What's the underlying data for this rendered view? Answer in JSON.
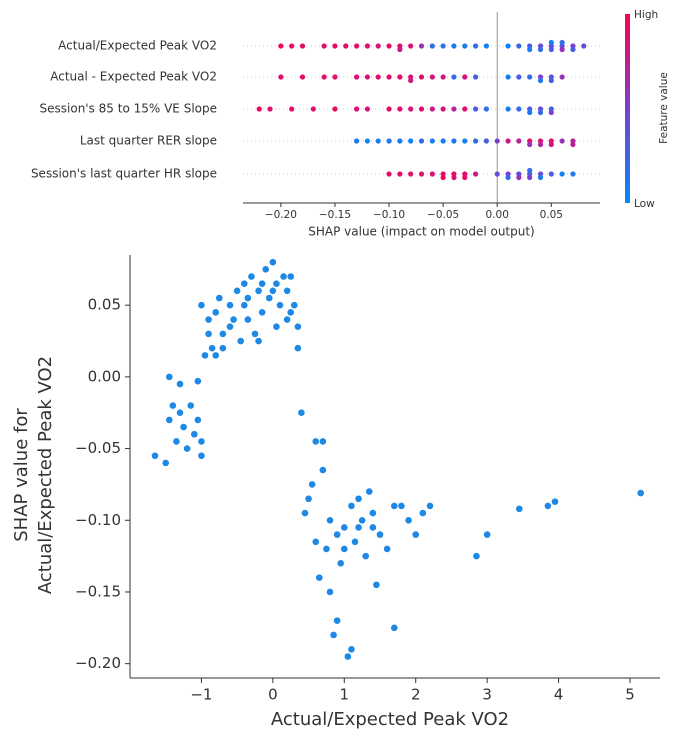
{
  "chart_data": [
    {
      "type": "beeswarm",
      "xlabel": "SHAP value (impact on model output)",
      "categories": [
        "Actual/Expected Peak VO2",
        "Actual - Expected Peak VO2",
        "Session's 85 to 15% VE Slope",
        "Last quarter RER slope",
        "Session's last quarter HR slope"
      ],
      "values": [
        [
          -0.2,
          -0.19,
          -0.18,
          -0.16,
          -0.15,
          -0.14,
          -0.13,
          -0.12,
          -0.11,
          -0.1,
          -0.09,
          -0.09,
          -0.08,
          -0.07,
          -0.06,
          -0.05,
          -0.04,
          -0.03,
          -0.02,
          -0.01,
          0.01,
          0.02,
          0.03,
          0.03,
          0.04,
          0.04,
          0.05,
          0.05,
          0.05,
          0.06,
          0.06,
          0.06,
          0.07,
          0.07,
          0.08
        ],
        [
          -0.2,
          -0.18,
          -0.16,
          -0.15,
          -0.13,
          -0.12,
          -0.11,
          -0.1,
          -0.09,
          -0.08,
          -0.08,
          -0.07,
          -0.06,
          -0.05,
          -0.04,
          -0.03,
          -0.02,
          0.01,
          0.02,
          0.03,
          0.04,
          0.04,
          0.05,
          0.05,
          0.06
        ],
        [
          -0.22,
          -0.21,
          -0.19,
          -0.17,
          -0.15,
          -0.13,
          -0.12,
          -0.1,
          -0.09,
          -0.08,
          -0.07,
          -0.06,
          -0.05,
          -0.04,
          -0.03,
          -0.02,
          -0.01,
          0.01,
          0.02,
          0.03,
          0.03,
          0.04,
          0.04,
          0.05,
          0.05
        ],
        [
          -0.13,
          -0.12,
          -0.11,
          -0.1,
          -0.09,
          -0.08,
          -0.07,
          -0.06,
          -0.05,
          -0.04,
          -0.03,
          -0.02,
          -0.01,
          0.0,
          0.01,
          0.02,
          0.03,
          0.03,
          0.04,
          0.04,
          0.05,
          0.05,
          0.06,
          0.07,
          0.07
        ],
        [
          -0.1,
          -0.09,
          -0.08,
          -0.07,
          -0.06,
          -0.05,
          -0.05,
          -0.04,
          -0.04,
          -0.03,
          -0.03,
          -0.02,
          0.0,
          0.01,
          0.01,
          0.02,
          0.02,
          0.03,
          0.03,
          0.03,
          0.04,
          0.04,
          0.05,
          0.06,
          0.07
        ]
      ],
      "feature_values": [
        [
          0.95,
          0.95,
          0.9,
          0.9,
          0.92,
          0.9,
          0.88,
          0.9,
          0.85,
          0.9,
          0.88,
          0.8,
          0.85,
          0.6,
          0.2,
          0.15,
          0.1,
          0.1,
          0.2,
          0.05,
          0.05,
          0.2,
          0.3,
          0.1,
          0.4,
          0.2,
          0.5,
          0.3,
          0.1,
          0.4,
          0.6,
          0.2,
          0.5,
          0.3,
          0.4
        ],
        [
          0.9,
          0.92,
          0.9,
          0.88,
          0.9,
          0.85,
          0.9,
          0.88,
          0.9,
          0.85,
          0.8,
          0.9,
          0.85,
          0.8,
          0.2,
          0.85,
          0.3,
          0.1,
          0.3,
          0.2,
          0.5,
          0.1,
          0.4,
          0.3,
          0.6
        ],
        [
          0.95,
          0.9,
          0.9,
          0.88,
          0.92,
          0.9,
          0.85,
          0.9,
          0.88,
          0.85,
          0.9,
          0.8,
          0.85,
          0.7,
          0.9,
          0.3,
          0.2,
          0.1,
          0.2,
          0.3,
          0.1,
          0.4,
          0.2,
          0.3,
          0.5
        ],
        [
          0.1,
          0.05,
          0.1,
          0.15,
          0.1,
          0.05,
          0.2,
          0.1,
          0.1,
          0.15,
          0.1,
          0.2,
          0.3,
          0.5,
          0.8,
          0.7,
          0.9,
          0.6,
          0.85,
          0.7,
          0.9,
          0.8,
          0.6,
          0.7,
          0.75
        ],
        [
          0.9,
          0.92,
          0.88,
          0.9,
          0.85,
          0.9,
          0.95,
          0.9,
          0.85,
          0.9,
          0.88,
          0.8,
          0.4,
          0.5,
          0.2,
          0.4,
          0.6,
          0.3,
          0.5,
          0.2,
          0.4,
          0.1,
          0.3,
          0.05,
          0.1
        ]
      ],
      "colors": [
        "#008bfb",
        "#7d3fcf",
        "#ff0052"
      ],
      "colorbar": {
        "label": "Feature value",
        "high": "High",
        "low": "Low"
      },
      "xlim": [
        -0.235,
        0.095
      ],
      "xticks": [
        {
          "value": -0.2,
          "label": "−0.20"
        },
        {
          "value": -0.15,
          "label": "−0.15"
        },
        {
          "value": -0.1,
          "label": "−0.10"
        },
        {
          "value": -0.05,
          "label": "−0.05"
        },
        {
          "value": 0,
          "label": "0.00"
        },
        0.05
      ]
    },
    {
      "type": "scatter",
      "xlabel": "Actual/Expected Peak VO2",
      "ylabel": [
        "SHAP value for",
        "Actual/Expected Peak VO2"
      ],
      "color": "#1e88e5",
      "x": [
        -1.0,
        -0.95,
        -0.9,
        -0.85,
        -0.8,
        -0.75,
        -0.7,
        -0.6,
        -0.5,
        -0.45,
        -0.4,
        -0.35,
        -0.3,
        -0.25,
        -0.2,
        -0.15,
        -0.1,
        -0.05,
        0.0,
        0.05,
        0.1,
        0.15,
        0.2,
        0.25,
        0.3,
        0.35,
        -0.9,
        -0.7,
        -0.55,
        -0.35,
        -0.15,
        0.05,
        0.25,
        -0.8,
        -0.6,
        -0.4,
        -0.2,
        0.0,
        0.2,
        0.35,
        -1.65,
        -1.5,
        -1.45,
        -1.4,
        -1.35,
        -1.3,
        -1.25,
        -1.2,
        -1.15,
        -1.1,
        -1.05,
        -1.0,
        -1.0,
        -1.45,
        -1.3,
        -1.05,
        0.4,
        0.45,
        0.5,
        0.55,
        0.6,
        0.65,
        0.7,
        0.75,
        0.8,
        0.85,
        0.9,
        0.95,
        1.0,
        1.05,
        1.1,
        1.15,
        1.2,
        1.25,
        1.3,
        1.35,
        1.4,
        1.45,
        1.5,
        1.6,
        1.7,
        1.8,
        1.9,
        2.0,
        2.1,
        2.2,
        0.6,
        0.7,
        0.8,
        0.9,
        1.0,
        1.1,
        1.2,
        1.4,
        1.7,
        2.85,
        3.0,
        3.45,
        3.85,
        3.95,
        5.15
      ],
      "y": [
        0.05,
        0.015,
        0.04,
        0.02,
        0.045,
        0.055,
        0.03,
        0.05,
        0.06,
        0.025,
        0.065,
        0.04,
        0.07,
        0.03,
        0.06,
        0.045,
        0.075,
        0.055,
        0.08,
        0.065,
        0.05,
        0.07,
        0.06,
        0.045,
        0.05,
        0.02,
        0.03,
        0.02,
        0.04,
        0.055,
        0.065,
        0.035,
        0.07,
        0.015,
        0.035,
        0.05,
        0.025,
        0.06,
        0.04,
        0.035,
        -0.055,
        -0.06,
        -0.03,
        -0.02,
        -0.045,
        -0.025,
        -0.035,
        -0.05,
        -0.02,
        -0.04,
        -0.03,
        -0.045,
        -0.055,
        0.0,
        -0.005,
        -0.003,
        -0.025,
        -0.095,
        -0.085,
        -0.075,
        -0.045,
        -0.14,
        -0.065,
        -0.12,
        -0.15,
        -0.18,
        -0.11,
        -0.13,
        -0.105,
        -0.195,
        -0.09,
        -0.115,
        -0.105,
        -0.1,
        -0.125,
        -0.08,
        -0.095,
        -0.145,
        -0.11,
        -0.12,
        -0.175,
        -0.09,
        -0.1,
        -0.11,
        -0.095,
        -0.09,
        -0.115,
        -0.045,
        -0.1,
        -0.17,
        -0.12,
        -0.19,
        -0.085,
        -0.105,
        -0.09,
        -0.125,
        -0.11,
        -0.092,
        -0.09,
        -0.087,
        -0.081
      ],
      "xlim": [
        -2.0,
        5.42
      ],
      "ylim": [
        -0.21,
        0.085
      ],
      "xticks": [
        {
          "value": -1,
          "label": "−1"
        },
        0,
        1,
        2,
        3,
        4,
        5
      ],
      "yticks": [
        {
          "value": -0.2,
          "label": "−0.20"
        },
        {
          "value": -0.15,
          "label": "−0.15"
        },
        {
          "value": -0.1,
          "label": "−0.10"
        },
        {
          "value": -0.05,
          "label": "−0.05"
        },
        {
          "value": 0,
          "label": "0.00"
        },
        0.05
      ]
    }
  ]
}
